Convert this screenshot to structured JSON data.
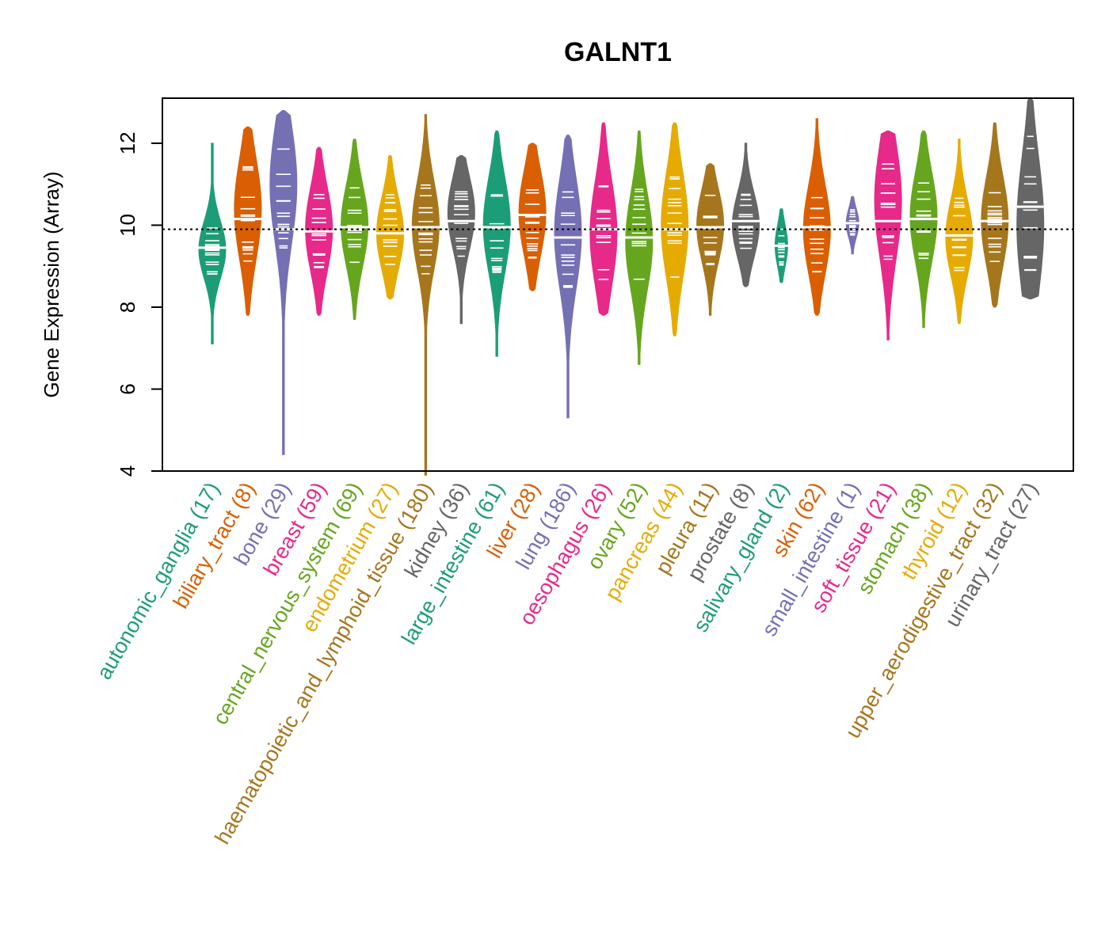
{
  "chart_data": {
    "type": "violin",
    "title": "GALNT1",
    "ylabel": "Gene Expression (Array)",
    "xlabel": "",
    "ylim": [
      4,
      13.1
    ],
    "yticks": [
      4,
      6,
      8,
      10,
      12
    ],
    "reference_line": 9.9,
    "grid": false,
    "categories": [
      {
        "label": "autonomic_ganglia",
        "n": "(17)",
        "color": "#1b9e77",
        "min": 7.1,
        "max": 12.0,
        "median": 9.45,
        "peak": 9.4,
        "bulk": [
          8.7,
          10.1
        ]
      },
      {
        "label": "biliary_tract",
        "n": "(8)",
        "color": "#d95f02",
        "min": 7.8,
        "max": 12.4,
        "median": 10.15,
        "peak": 10.4,
        "bulk": [
          9.0,
          11.5
        ]
      },
      {
        "label": "bone",
        "n": "(29)",
        "color": "#7570b3",
        "min": 4.4,
        "max": 12.8,
        "median": 9.9,
        "peak": 11.0,
        "bulk": [
          9.0,
          11.9
        ]
      },
      {
        "label": "breast",
        "n": "(59)",
        "color": "#e7298a",
        "min": 7.8,
        "max": 11.9,
        "median": 9.85,
        "peak": 9.9,
        "bulk": [
          8.8,
          10.9
        ]
      },
      {
        "label": "central_nervous_system",
        "n": "(69)",
        "color": "#66a61e",
        "min": 7.7,
        "max": 12.1,
        "median": 9.95,
        "peak": 10.0,
        "bulk": [
          9.0,
          11.0
        ]
      },
      {
        "label": "endometrium",
        "n": "(27)",
        "color": "#e6ab02",
        "min": 8.2,
        "max": 11.7,
        "median": 9.8,
        "peak": 9.8,
        "bulk": [
          9.0,
          10.8
        ]
      },
      {
        "label": "haematopoietic_and_lymphoid_tissue",
        "n": "(180)",
        "color": "#a6761d",
        "min": 3.9,
        "max": 12.7,
        "median": 9.95,
        "peak": 10.0,
        "bulk": [
          8.8,
          11.0
        ]
      },
      {
        "label": "kidney",
        "n": "(36)",
        "color": "#666666",
        "min": 7.6,
        "max": 11.7,
        "median": 10.1,
        "peak": 10.3,
        "bulk": [
          9.2,
          11.0
        ]
      },
      {
        "label": "large_intestine",
        "n": "(61)",
        "color": "#1b9e77",
        "min": 6.8,
        "max": 12.3,
        "median": 9.95,
        "peak": 10.0,
        "bulk": [
          8.8,
          11.1
        ]
      },
      {
        "label": "liver",
        "n": "(28)",
        "color": "#d95f02",
        "min": 8.4,
        "max": 12.0,
        "median": 10.25,
        "peak": 10.3,
        "bulk": [
          9.2,
          11.3
        ]
      },
      {
        "label": "lung",
        "n": "(186)",
        "color": "#7570b3",
        "min": 5.3,
        "max": 12.2,
        "median": 9.7,
        "peak": 9.8,
        "bulk": [
          8.3,
          11.0
        ]
      },
      {
        "label": "oesophagus",
        "n": "(26)",
        "color": "#e7298a",
        "min": 7.8,
        "max": 12.5,
        "median": 9.9,
        "peak": 9.8,
        "bulk": [
          8.6,
          11.2
        ]
      },
      {
        "label": "ovary",
        "n": "(52)",
        "color": "#66a61e",
        "min": 6.6,
        "max": 12.3,
        "median": 9.7,
        "peak": 9.6,
        "bulk": [
          8.5,
          10.9
        ]
      },
      {
        "label": "pancreas",
        "n": "(44)",
        "color": "#e6ab02",
        "min": 7.3,
        "max": 12.5,
        "median": 9.9,
        "peak": 10.0,
        "bulk": [
          8.6,
          11.2
        ]
      },
      {
        "label": "pleura",
        "n": "(11)",
        "color": "#a6761d",
        "min": 7.8,
        "max": 11.5,
        "median": 9.95,
        "peak": 10.0,
        "bulk": [
          9.0,
          10.8
        ]
      },
      {
        "label": "prostate",
        "n": "(8)",
        "color": "#666666",
        "min": 8.5,
        "max": 12.0,
        "median": 10.1,
        "peak": 10.0,
        "bulk": [
          9.3,
          10.9
        ]
      },
      {
        "label": "salivary_gland",
        "n": "(2)",
        "color": "#1b9e77",
        "min": 8.6,
        "max": 10.4,
        "median": 9.5,
        "peak": 9.5,
        "bulk": [
          9.0,
          10.0
        ]
      },
      {
        "label": "skin",
        "n": "(62)",
        "color": "#d95f02",
        "min": 7.8,
        "max": 12.6,
        "median": 9.95,
        "peak": 9.9,
        "bulk": [
          8.8,
          11.0
        ]
      },
      {
        "label": "small_intestine",
        "n": "(1)",
        "color": "#7570b3",
        "min": 9.3,
        "max": 10.7,
        "median": 10.05,
        "peak": 10.05,
        "bulk": [
          9.7,
          10.4
        ]
      },
      {
        "label": "soft_tissue",
        "n": "(21)",
        "color": "#e7298a",
        "min": 7.2,
        "max": 12.3,
        "median": 10.1,
        "peak": 10.6,
        "bulk": [
          8.8,
          11.6
        ]
      },
      {
        "label": "stomach",
        "n": "(38)",
        "color": "#66a61e",
        "min": 7.5,
        "max": 12.3,
        "median": 10.15,
        "peak": 10.2,
        "bulk": [
          9.0,
          11.2
        ]
      },
      {
        "label": "thyroid",
        "n": "(12)",
        "color": "#e6ab02",
        "min": 7.6,
        "max": 12.1,
        "median": 9.75,
        "peak": 9.7,
        "bulk": [
          8.8,
          10.7
        ]
      },
      {
        "label": "upper_aerodigestive_tract",
        "n": "(32)",
        "color": "#a6761d",
        "min": 8.0,
        "max": 12.5,
        "median": 10.1,
        "peak": 10.1,
        "bulk": [
          9.0,
          11.2
        ]
      },
      {
        "label": "urinary_tract",
        "n": "(27)",
        "color": "#666666",
        "min": 8.2,
        "max": 13.1,
        "median": 10.45,
        "peak": 10.0,
        "bulk": [
          8.9,
          12.3
        ]
      }
    ]
  }
}
